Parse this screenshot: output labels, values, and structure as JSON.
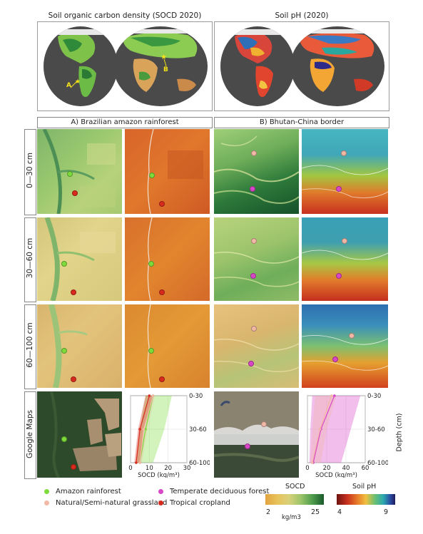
{
  "top": {
    "socd_title": "Soil organic carbon density (SOCD 2020)",
    "ph_title": "Soil pH (2020)",
    "marker_a": "A",
    "marker_b": "B"
  },
  "sections": {
    "a_title": "A) Brazilian amazon rainforest",
    "b_title": "B) Bhutan-China border"
  },
  "rows": [
    "0—30 cm",
    "30—60 cm",
    "60—100 cm",
    "Google Maps"
  ],
  "charts": {
    "a": {
      "xlabel": "SOCD (kg/m³)",
      "xticks": [
        "0",
        "10",
        "20",
        "30"
      ]
    },
    "b": {
      "xlabel": "SOCD (kg/m³)",
      "xticks": [
        "0",
        "20",
        "40",
        "60"
      ]
    },
    "yticks": [
      "0-30",
      "30-60",
      "60-100"
    ],
    "ylabel": "Depth (cm)"
  },
  "chart_data": [
    {
      "type": "line",
      "xlabel": "SOCD (kg/m³)",
      "ylabel": "Depth (cm)",
      "categories": [
        "0-30",
        "30-60",
        "60-100"
      ],
      "xlim": [
        0,
        30
      ],
      "series": [
        {
          "name": "Amazon rainforest",
          "values": [
            12,
            8,
            5
          ],
          "band_low": [
            8,
            5,
            3
          ],
          "band_high": [
            22,
            18,
            12
          ]
        },
        {
          "name": "Natural/Semi-natural grassland",
          "values": [
            12,
            7,
            5
          ],
          "band_low": [
            10,
            5,
            3
          ],
          "band_high": [
            13,
            9,
            6
          ]
        },
        {
          "name": "Tropical cropland",
          "values": [
            10,
            5,
            3
          ],
          "band_low": [
            8,
            4,
            2
          ],
          "band_high": [
            12,
            7,
            5
          ]
        }
      ]
    },
    {
      "type": "line",
      "xlabel": "SOCD (kg/m³)",
      "ylabel": "Depth (cm)",
      "categories": [
        "0-30",
        "30-60",
        "60-100"
      ],
      "xlim": [
        0,
        60
      ],
      "series": [
        {
          "name": "Temperate deciduous forest",
          "values": [
            28,
            14,
            6
          ],
          "band_low": [
            5,
            3,
            2
          ],
          "band_high": [
            55,
            45,
            35
          ]
        },
        {
          "name": "Natural/Semi-natural grassland",
          "values": [
            25,
            13,
            5
          ],
          "band_low": [
            8,
            5,
            3
          ],
          "band_high": [
            30,
            20,
            14
          ]
        }
      ]
    }
  ],
  "legend": {
    "items": [
      {
        "label": "Amazon rainforest",
        "color": "#7ddc3c"
      },
      {
        "label": "Natural/Semi-natural grassland",
        "color": "#f2b8a6"
      },
      {
        "label": "Temperate deciduous forest",
        "color": "#d946c8"
      },
      {
        "label": "Tropical cropland",
        "color": "#d92a1e"
      }
    ],
    "socd_bar": {
      "title": "SOCD",
      "min": "2",
      "max": "25",
      "unit": "kg/m3"
    },
    "ph_bar": {
      "title": "Soil pH",
      "min": "4",
      "max": "9"
    }
  }
}
